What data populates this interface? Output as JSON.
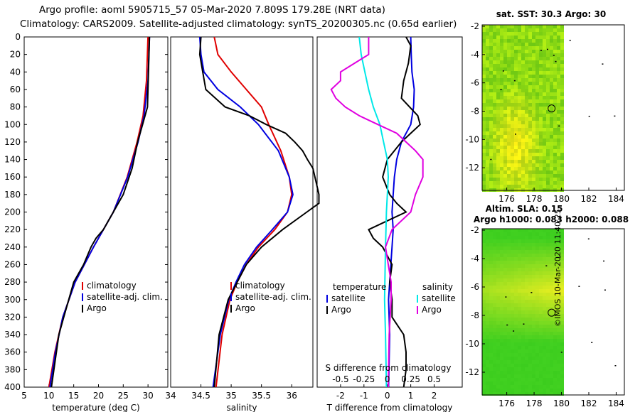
{
  "title_line1": "Argo profile: aoml 5905715_57 05-Mar-2020 7.809S 179.28E (NRT data)",
  "title_line2": "Climatology: CARS2009. Satellite-adjusted climatology: synTS_20200305.nc (0.65d earlier)",
  "credit": "©IMOS 10-Mar-2020 11:40:25",
  "colors": {
    "climatology": "#e00000",
    "satellite": "#0000e0",
    "argo": "#000000",
    "satellite_s": "#00e8e8",
    "argo_s": "#e000e0"
  },
  "chart_data": [
    {
      "id": "temp",
      "type": "line",
      "xlabel": "temperature (deg C)",
      "ylabel": "",
      "xlim": [
        5,
        34
      ],
      "ylim": [
        0,
        400
      ],
      "xticks": [
        5,
        10,
        15,
        20,
        25,
        30
      ],
      "xtick_labels": [
        "5",
        "10",
        "15",
        "20",
        "25",
        "30"
      ],
      "yticks": [
        0,
        20,
        40,
        60,
        80,
        100,
        120,
        140,
        160,
        180,
        200,
        220,
        240,
        260,
        280,
        300,
        320,
        340,
        360,
        380,
        400
      ],
      "legend": [
        "climatology",
        "satellite-adj. clim.",
        "Argo"
      ],
      "series": [
        {
          "name": "climatology",
          "color": "#e00000",
          "depth": [
            0,
            50,
            90,
            120,
            160,
            200,
            240,
            280,
            320,
            360,
            400
          ],
          "values": [
            30.0,
            29.7,
            29.0,
            27.8,
            25.8,
            23.0,
            19.0,
            15.3,
            12.8,
            11.2,
            10.0
          ]
        },
        {
          "name": "satellite-adj. clim.",
          "color": "#0000e0",
          "depth": [
            0,
            50,
            90,
            120,
            160,
            200,
            240,
            280,
            320,
            360,
            400
          ],
          "values": [
            30.3,
            30.0,
            29.2,
            28.0,
            25.9,
            23.0,
            19.0,
            15.3,
            12.8,
            11.3,
            10.2
          ]
        },
        {
          "name": "Argo",
          "color": "#000000",
          "depth": [
            0,
            40,
            80,
            100,
            120,
            150,
            180,
            200,
            220,
            230,
            240,
            260,
            280,
            300,
            320,
            340,
            360,
            380,
            400
          ],
          "values": [
            30.3,
            30.1,
            29.9,
            28.9,
            27.9,
            26.8,
            25.0,
            23.0,
            21.0,
            19.5,
            18.5,
            17.0,
            15.0,
            14.0,
            13.0,
            12.0,
            11.5,
            11.0,
            10.5
          ]
        }
      ]
    },
    {
      "id": "sal",
      "type": "line",
      "xlabel": "salinity",
      "xlim": [
        34.0,
        36.35
      ],
      "ylim": [
        0,
        400
      ],
      "xticks": [
        34.0,
        34.5,
        35.0,
        35.5,
        36.0
      ],
      "xtick_labels": [
        "34",
        "34.5",
        "35",
        "35.5",
        "36"
      ],
      "legend": [
        "climatology",
        "satellite-adj. clim.",
        "Argo"
      ],
      "series": [
        {
          "name": "climatology",
          "color": "#e00000",
          "depth": [
            0,
            20,
            40,
            60,
            80,
            100,
            130,
            160,
            180,
            200,
            220,
            240,
            260,
            280,
            300,
            340,
            400
          ],
          "values": [
            34.72,
            34.78,
            35.0,
            35.25,
            35.5,
            35.62,
            35.82,
            35.96,
            36.0,
            35.93,
            35.72,
            35.45,
            35.25,
            35.1,
            34.98,
            34.85,
            34.75
          ]
        },
        {
          "name": "satellite-adj. clim.",
          "color": "#0000e0",
          "depth": [
            0,
            20,
            40,
            60,
            80,
            100,
            130,
            160,
            180,
            200,
            220,
            240,
            260,
            280,
            300,
            340,
            400
          ],
          "values": [
            34.48,
            34.5,
            34.55,
            34.78,
            35.15,
            35.45,
            35.78,
            35.96,
            36.02,
            35.93,
            35.68,
            35.42,
            35.22,
            35.08,
            34.96,
            34.82,
            34.7
          ]
        },
        {
          "name": "Argo",
          "color": "#000000",
          "depth": [
            0,
            20,
            40,
            60,
            80,
            90,
            100,
            110,
            120,
            130,
            140,
            150,
            165,
            180,
            190,
            200,
            220,
            240,
            260,
            280,
            300,
            340,
            400
          ],
          "values": [
            34.5,
            34.48,
            34.53,
            34.58,
            34.9,
            35.3,
            35.58,
            35.9,
            36.05,
            36.18,
            36.26,
            36.35,
            36.4,
            36.45,
            36.45,
            36.25,
            35.85,
            35.5,
            35.25,
            35.1,
            34.95,
            34.8,
            34.72
          ]
        }
      ]
    },
    {
      "id": "diff",
      "type": "line",
      "xlabel": "T difference from climatology",
      "top_axis_label": "S difference from climatology",
      "xlim": [
        -3,
        3.2
      ],
      "ylim": [
        0,
        400
      ],
      "xticks": [
        -2,
        -1,
        0,
        1,
        2
      ],
      "xtick_labels": [
        "-2",
        "-1",
        "0",
        "1",
        "2"
      ],
      "s_xticks": [
        -0.5,
        -0.25,
        0,
        0.25,
        0.5
      ],
      "s_xtick_labels": [
        "-0.5",
        "-0.25",
        "0",
        "0.25",
        "0.5"
      ],
      "s_scale": 4,
      "legend_temperature": {
        "header": "temperature",
        "items": [
          "satellite",
          "Argo"
        ]
      },
      "legend_salinity": {
        "header": "salinity",
        "items": [
          "satellite",
          "Argo"
        ]
      },
      "series": [
        {
          "name": "T satellite",
          "color": "#0000e0",
          "depth": [
            0,
            20,
            40,
            60,
            80,
            100,
            120,
            140,
            160,
            180,
            200,
            220,
            240,
            260,
            280,
            300,
            340,
            400
          ],
          "values": [
            1.0,
            1.02,
            1.05,
            1.15,
            1.12,
            1.0,
            0.6,
            0.4,
            0.3,
            0.25,
            0.2,
            0.25,
            0.2,
            0.15,
            0.1,
            0.05,
            0.1,
            0.05
          ]
        },
        {
          "name": "T Argo",
          "color": "#000000",
          "depth": [
            0,
            10,
            30,
            50,
            70,
            90,
            100,
            110,
            120,
            140,
            160,
            180,
            190,
            200,
            210,
            220,
            230,
            240,
            260,
            280,
            300,
            320,
            340,
            360,
            380,
            400
          ],
          "values": [
            0.8,
            1.0,
            0.9,
            0.7,
            0.6,
            1.3,
            1.4,
            1.0,
            0.6,
            0.0,
            -0.2,
            0.1,
            0.4,
            0.8,
            0.0,
            -0.8,
            -0.6,
            -0.2,
            0.2,
            0.1,
            0.2,
            0.2,
            0.7,
            0.8,
            0.8,
            0.7
          ]
        },
        {
          "name": "S satellite",
          "color": "#00e8e8",
          "depth": [
            0,
            20,
            40,
            60,
            80,
            100,
            120,
            140,
            160,
            180,
            200,
            240,
            300,
            340,
            400
          ],
          "values": [
            -0.3,
            -0.28,
            -0.24,
            -0.2,
            -0.15,
            -0.08,
            -0.04,
            0.0,
            0.01,
            0.0,
            -0.01,
            -0.02,
            -0.03,
            -0.02,
            -0.01
          ]
        },
        {
          "name": "S Argo",
          "color": "#e000e0",
          "depth": [
            0,
            20,
            30,
            40,
            50,
            60,
            70,
            80,
            90,
            100,
            110,
            120,
            130,
            140,
            150,
            160,
            180,
            200,
            220,
            240,
            260,
            280,
            300,
            340,
            400
          ],
          "values": [
            -0.2,
            -0.2,
            -0.35,
            -0.5,
            -0.5,
            -0.6,
            -0.55,
            -0.45,
            -0.3,
            -0.1,
            0.1,
            0.2,
            0.3,
            0.38,
            0.38,
            0.38,
            0.3,
            0.25,
            0.05,
            -0.02,
            0.01,
            0.04,
            0.04,
            0.02,
            0.01
          ]
        }
      ]
    }
  ],
  "maps": [
    {
      "id": "sst-map",
      "title": "sat. SST: 30.3 Argo: 30",
      "xlim": [
        174.2,
        184.6
      ],
      "ylim": [
        -13.6,
        -1.9
      ],
      "xticks": [
        176,
        178,
        180,
        182,
        184
      ],
      "xtick_labels": [
        "176",
        "178",
        "180",
        "182",
        "184"
      ],
      "yticks": [
        -2,
        -4,
        -6,
        -8,
        -10,
        -12
      ],
      "ytick_labels": [
        "-2",
        "-4",
        "-6",
        "-8",
        "-10",
        "-12"
      ],
      "data_extent_lon": [
        174.2,
        180.0
      ],
      "argo_marker": [
        179.28,
        -7.809
      ]
    },
    {
      "id": "sla-map",
      "title": "Altim. SLA: 0.15",
      "subtitle": "Argo h1000: 0.083 h2000: 0.088",
      "xlim": [
        174.2,
        184.6
      ],
      "ylim": [
        -13.6,
        -1.9
      ],
      "xticks": [
        176,
        178,
        180,
        182,
        184
      ],
      "xtick_labels": [
        "176",
        "178",
        "180",
        "182",
        "184"
      ],
      "yticks": [
        -2,
        -4,
        -6,
        -8,
        -10,
        -12
      ],
      "ytick_labels": [
        "-2",
        "-4",
        "-6",
        "-8",
        "-10",
        "-12"
      ],
      "data_extent_lon": [
        174.2,
        180.0
      ],
      "argo_marker": [
        179.28,
        -7.809
      ]
    }
  ]
}
